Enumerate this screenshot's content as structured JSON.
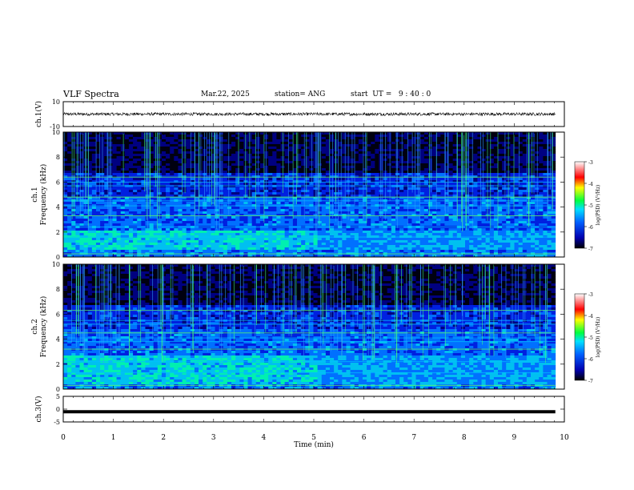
{
  "header": {
    "title": "VLF Spectra",
    "date": "Mar.22, 2025",
    "station": "station= ANG",
    "start": "start  UT =   9 : 40 : 0"
  },
  "chart_data": [
    {
      "type": "line",
      "panel": "ch1-waveform",
      "ylabel": "ch.1(V)",
      "ylim": [
        -10,
        10
      ],
      "yticks": [
        "10",
        "-10"
      ],
      "xlim": [
        0,
        10
      ],
      "trace_level": 0,
      "trace_amplitude": 1.2,
      "trace_color": "#000000"
    },
    {
      "type": "heatmap",
      "panel": "ch1-spectrogram",
      "ylabel": "ch.1",
      "ylabel2": "Frequency (kHz)",
      "ylim": [
        0,
        10
      ],
      "yticks": [
        "0",
        "2",
        "4",
        "6",
        "8",
        "10"
      ],
      "xlim": [
        0,
        10
      ],
      "data_end_min": 9.82,
      "emission_band_khz": [
        0.5,
        2.2
      ],
      "tone_lines_khz": [
        0.25,
        1.6,
        2.4,
        3.3,
        4.1,
        4.5,
        4.8,
        5.7,
        6.0,
        6.4
      ],
      "colorbar": {
        "label": "log(PSD) (V²/Hz)",
        "min": -7,
        "max": -3,
        "ticks": [
          "-3",
          "-4",
          "-5",
          "-6",
          "-7"
        ]
      }
    },
    {
      "type": "heatmap",
      "panel": "ch2-spectrogram",
      "ylabel": "ch.2",
      "ylabel2": "Frequency (kHz)",
      "ylim": [
        0,
        10
      ],
      "yticks": [
        "0",
        "2",
        "4",
        "6",
        "8",
        "10"
      ],
      "xlim": [
        0,
        10
      ],
      "data_end_min": 9.82,
      "emission_band_khz": [
        0.4,
        2.6
      ],
      "tone_lines_khz": [
        0.3,
        1.3,
        2.2,
        3.2,
        3.8,
        4.1,
        4.5,
        5.2,
        5.5,
        6.3
      ],
      "colorbar": {
        "label": "log(PSD) (V²/Hz)",
        "min": -7,
        "max": -3,
        "ticks": [
          "-3",
          "-4",
          "-5",
          "-6",
          "-7"
        ]
      }
    },
    {
      "type": "line",
      "panel": "ch3-waveform",
      "ylabel": "ch.3(V)",
      "ylim": [
        -5,
        5
      ],
      "yticks": [
        "5",
        "0",
        "-5"
      ],
      "xlim": [
        0,
        10
      ],
      "xticks": [
        "0",
        "1",
        "2",
        "3",
        "4",
        "5",
        "6",
        "7",
        "8",
        "9",
        "10"
      ],
      "xlabel": "Time (min)",
      "trace_level": -1,
      "trace_color": "#000000"
    }
  ]
}
